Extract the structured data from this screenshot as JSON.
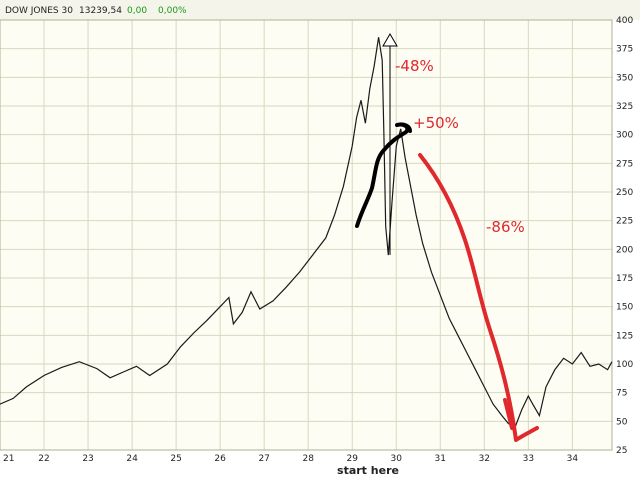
{
  "header": {
    "name": "DOW JONES 30",
    "value": "13239,54",
    "change": "0,00",
    "change_pct": "0,00%"
  },
  "colors": {
    "background": "#fdfdf4",
    "grid": "#d8d8c0",
    "price": "#1a1a1a",
    "annotation_red": "#e0282d",
    "annotation_black": "#000000",
    "header_green": "#1a9a1a"
  },
  "chart_data": {
    "type": "line",
    "xlabel": "start here",
    "ylabel": "",
    "x_ticks": [
      "21",
      "22",
      "23",
      "24",
      "25",
      "26",
      "27",
      "28",
      "29",
      "30",
      "31",
      "32",
      "33",
      "34"
    ],
    "y_ticks": [
      25,
      50,
      75,
      100,
      125,
      150,
      175,
      200,
      225,
      250,
      275,
      300,
      325,
      350,
      375,
      400
    ],
    "xlim": [
      21,
      34.9
    ],
    "ylim": [
      25,
      400
    ],
    "grid": true,
    "series": [
      {
        "values": [
          [
            21.0,
            65
          ],
          [
            21.3,
            70
          ],
          [
            21.6,
            80
          ],
          [
            22.0,
            90
          ],
          [
            22.4,
            97
          ],
          [
            22.8,
            102
          ],
          [
            23.2,
            96
          ],
          [
            23.5,
            88
          ],
          [
            23.8,
            93
          ],
          [
            24.1,
            98
          ],
          [
            24.4,
            90
          ],
          [
            24.8,
            100
          ],
          [
            25.1,
            115
          ],
          [
            25.4,
            127
          ],
          [
            25.7,
            138
          ],
          [
            26.0,
            150
          ],
          [
            26.2,
            158
          ],
          [
            26.3,
            135
          ],
          [
            26.5,
            145
          ],
          [
            26.7,
            163
          ],
          [
            26.9,
            148
          ],
          [
            27.2,
            155
          ],
          [
            27.5,
            167
          ],
          [
            27.8,
            180
          ],
          [
            28.1,
            195
          ],
          [
            28.4,
            210
          ],
          [
            28.6,
            230
          ],
          [
            28.8,
            255
          ],
          [
            29.0,
            290
          ],
          [
            29.1,
            315
          ],
          [
            29.2,
            330
          ],
          [
            29.3,
            310
          ],
          [
            29.4,
            340
          ],
          [
            29.5,
            360
          ],
          [
            29.6,
            385
          ],
          [
            29.68,
            365
          ],
          [
            29.72,
            300
          ],
          [
            29.76,
            220
          ],
          [
            29.82,
            195
          ],
          [
            29.9,
            240
          ],
          [
            30.0,
            290
          ],
          [
            30.1,
            305
          ],
          [
            30.2,
            280
          ],
          [
            30.3,
            260
          ],
          [
            30.45,
            230
          ],
          [
            30.6,
            205
          ],
          [
            30.8,
            180
          ],
          [
            31.0,
            160
          ],
          [
            31.2,
            140
          ],
          [
            31.4,
            125
          ],
          [
            31.6,
            110
          ],
          [
            31.8,
            95
          ],
          [
            32.0,
            80
          ],
          [
            32.2,
            65
          ],
          [
            32.4,
            55
          ],
          [
            32.55,
            48
          ],
          [
            32.7,
            45
          ],
          [
            32.85,
            60
          ],
          [
            33.0,
            72
          ],
          [
            33.1,
            65
          ],
          [
            33.25,
            55
          ],
          [
            33.4,
            80
          ],
          [
            33.6,
            95
          ],
          [
            33.8,
            105
          ],
          [
            34.0,
            100
          ],
          [
            34.2,
            110
          ],
          [
            34.4,
            98
          ],
          [
            34.6,
            100
          ],
          [
            34.8,
            95
          ],
          [
            34.9,
            102
          ]
        ]
      }
    ],
    "annotations": [
      "-48%",
      "+50%",
      "-86%"
    ]
  }
}
